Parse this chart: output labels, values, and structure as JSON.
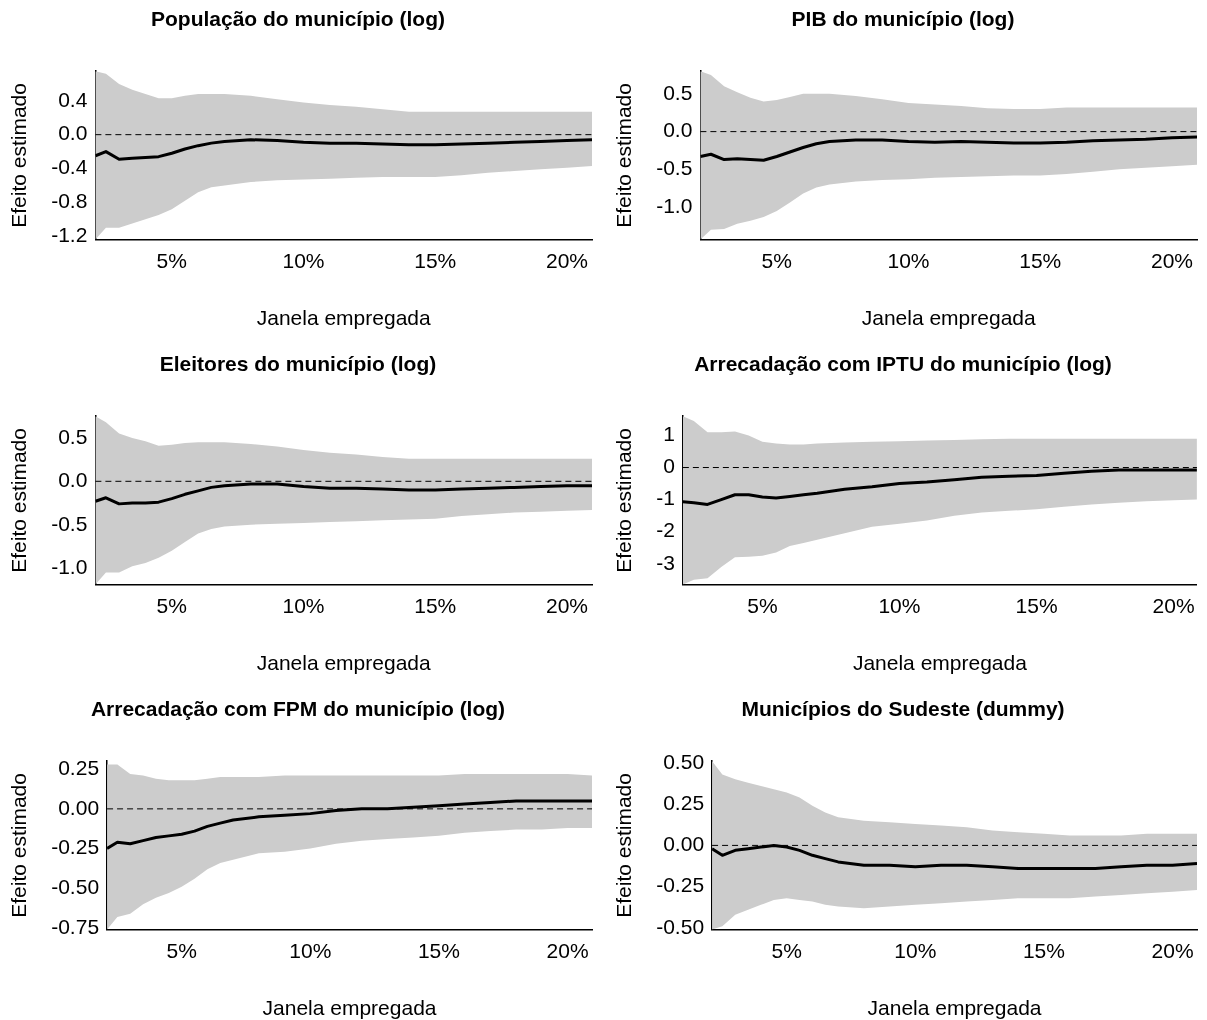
{
  "chart_data": [
    {
      "type": "line",
      "title": "População do município (log)",
      "xlabel": "Janela empregada",
      "ylabel": "Efeito estimado",
      "x": [
        2.1,
        2.5,
        3,
        3.5,
        4,
        4.5,
        5,
        5.5,
        6,
        6.5,
        7,
        8,
        9,
        10,
        11,
        12,
        13,
        14,
        15,
        16,
        17,
        18,
        19,
        20,
        20.95
      ],
      "series": [
        {
          "color": "#000000",
          "values": [
            -0.25,
            -0.2,
            -0.29,
            -0.28,
            -0.27,
            -0.26,
            -0.22,
            -0.17,
            -0.13,
            -0.1,
            -0.08,
            -0.06,
            -0.07,
            -0.09,
            -0.1,
            -0.1,
            -0.11,
            -0.12,
            -0.12,
            -0.11,
            -0.1,
            -0.09,
            -0.08,
            -0.07,
            -0.06
          ],
          "upper": [
            0.75,
            0.72,
            0.6,
            0.53,
            0.48,
            0.43,
            0.43,
            0.46,
            0.48,
            0.48,
            0.48,
            0.46,
            0.42,
            0.38,
            0.35,
            0.33,
            0.3,
            0.27,
            0.27,
            0.27,
            0.27,
            0.27,
            0.27,
            0.27,
            0.27
          ],
          "lower": [
            -1.24,
            -1.1,
            -1.1,
            -1.05,
            -1.0,
            -0.95,
            -0.88,
            -0.78,
            -0.68,
            -0.62,
            -0.6,
            -0.56,
            -0.54,
            -0.53,
            -0.52,
            -0.51,
            -0.5,
            -0.5,
            -0.5,
            -0.48,
            -0.45,
            -0.43,
            -0.41,
            -0.39,
            -0.37
          ]
        }
      ],
      "xlim": [
        2.1,
        20.95
      ],
      "xticks": [
        {
          "value": 5,
          "label": "5%"
        },
        {
          "value": 10,
          "label": "10%"
        },
        {
          "value": 15,
          "label": "15%"
        },
        {
          "value": 20,
          "label": "20%"
        }
      ],
      "ylim": [
        -1.24,
        0.75
      ],
      "yticks": [
        {
          "value": -1.2,
          "label": "-1.2"
        },
        {
          "value": -0.8,
          "label": "-0.8"
        },
        {
          "value": -0.4,
          "label": "-0.4"
        },
        {
          "value": 0,
          "label": "0.0"
        },
        {
          "value": 0.4,
          "label": "0.4"
        }
      ],
      "ref_lines": [
        {
          "axis": "y",
          "value": 0,
          "line_style": "dashed"
        }
      ],
      "grid": false,
      "legend": false
    },
    {
      "type": "line",
      "title": "PIB do município (log)",
      "xlabel": "Janela empregada",
      "ylabel": "Efeito estimado",
      "x": [
        2.1,
        2.5,
        3,
        3.5,
        4,
        4.5,
        5,
        5.5,
        6,
        6.5,
        7,
        8,
        9,
        10,
        11,
        12,
        13,
        14,
        15,
        16,
        17,
        18,
        19,
        20,
        20.95
      ],
      "series": [
        {
          "color": "#000000",
          "values": [
            -0.33,
            -0.3,
            -0.37,
            -0.36,
            -0.37,
            -0.38,
            -0.33,
            -0.27,
            -0.21,
            -0.16,
            -0.13,
            -0.11,
            -0.11,
            -0.13,
            -0.14,
            -0.13,
            -0.14,
            -0.15,
            -0.15,
            -0.14,
            -0.12,
            -0.11,
            -0.1,
            -0.08,
            -0.07
          ],
          "upper": [
            0.8,
            0.75,
            0.6,
            0.52,
            0.45,
            0.4,
            0.42,
            0.46,
            0.5,
            0.5,
            0.5,
            0.47,
            0.43,
            0.38,
            0.36,
            0.34,
            0.31,
            0.3,
            0.3,
            0.32,
            0.32,
            0.32,
            0.32,
            0.32,
            0.32
          ],
          "lower": [
            -1.43,
            -1.3,
            -1.29,
            -1.22,
            -1.18,
            -1.13,
            -1.05,
            -0.94,
            -0.82,
            -0.74,
            -0.7,
            -0.66,
            -0.64,
            -0.63,
            -0.61,
            -0.6,
            -0.59,
            -0.58,
            -0.58,
            -0.56,
            -0.53,
            -0.5,
            -0.48,
            -0.46,
            -0.44
          ]
        }
      ],
      "xlim": [
        2.1,
        20.95
      ],
      "xticks": [
        {
          "value": 5,
          "label": "5%"
        },
        {
          "value": 10,
          "label": "10%"
        },
        {
          "value": 15,
          "label": "15%"
        },
        {
          "value": 20,
          "label": "20%"
        }
      ],
      "ylim": [
        -1.43,
        0.8
      ],
      "yticks": [
        {
          "value": -1,
          "label": "-1.0"
        },
        {
          "value": -0.5,
          "label": "-0.5"
        },
        {
          "value": 0,
          "label": "0.0"
        },
        {
          "value": 0.5,
          "label": "0.5"
        }
      ],
      "ref_lines": [
        {
          "axis": "y",
          "value": 0,
          "line_style": "dashed"
        }
      ],
      "grid": false,
      "legend": false
    },
    {
      "type": "line",
      "title": "Eleitores do município (log)",
      "xlabel": "Janela empregada",
      "ylabel": "Efeito estimado",
      "x": [
        2.1,
        2.5,
        3,
        3.5,
        4,
        4.5,
        5,
        5.5,
        6,
        6.5,
        7,
        8,
        9,
        10,
        11,
        12,
        13,
        14,
        15,
        16,
        17,
        18,
        19,
        20,
        20.95
      ],
      "series": [
        {
          "color": "#000000",
          "values": [
            -0.23,
            -0.19,
            -0.26,
            -0.25,
            -0.25,
            -0.24,
            -0.2,
            -0.15,
            -0.11,
            -0.07,
            -0.05,
            -0.03,
            -0.03,
            -0.06,
            -0.08,
            -0.08,
            -0.09,
            -0.1,
            -0.1,
            -0.09,
            -0.08,
            -0.07,
            -0.06,
            -0.05,
            -0.05
          ],
          "upper": [
            0.75,
            0.68,
            0.55,
            0.5,
            0.46,
            0.41,
            0.42,
            0.44,
            0.45,
            0.45,
            0.45,
            0.43,
            0.4,
            0.36,
            0.33,
            0.31,
            0.28,
            0.26,
            0.26,
            0.26,
            0.26,
            0.26,
            0.26,
            0.26,
            0.26
          ],
          "lower": [
            -1.19,
            -1.05,
            -1.05,
            -0.98,
            -0.94,
            -0.88,
            -0.8,
            -0.7,
            -0.6,
            -0.55,
            -0.52,
            -0.5,
            -0.49,
            -0.48,
            -0.47,
            -0.46,
            -0.45,
            -0.44,
            -0.43,
            -0.4,
            -0.38,
            -0.36,
            -0.35,
            -0.34,
            -0.33
          ]
        }
      ],
      "xlim": [
        2.1,
        20.95
      ],
      "xticks": [
        {
          "value": 5,
          "label": "5%"
        },
        {
          "value": 10,
          "label": "10%"
        },
        {
          "value": 15,
          "label": "15%"
        },
        {
          "value": 20,
          "label": "20%"
        }
      ],
      "ylim": [
        -1.19,
        0.75
      ],
      "yticks": [
        {
          "value": -1,
          "label": "-1.0"
        },
        {
          "value": -0.5,
          "label": "-0.5"
        },
        {
          "value": 0,
          "label": "0.0"
        },
        {
          "value": 0.5,
          "label": "0.5"
        }
      ],
      "ref_lines": [
        {
          "axis": "y",
          "value": 0,
          "line_style": "dashed"
        }
      ],
      "grid": false,
      "legend": false
    },
    {
      "type": "line",
      "title": "Arrecadação com IPTU do município (log)",
      "xlabel": "Janela empregada",
      "ylabel": "Efeito estimado",
      "x": [
        2.1,
        2.5,
        3,
        3.5,
        4,
        4.5,
        5,
        5.5,
        6,
        6.5,
        7,
        8,
        9,
        10,
        11,
        12,
        13,
        14,
        15,
        16,
        17,
        18,
        19,
        20,
        20.85
      ],
      "series": [
        {
          "color": "#000000",
          "values": [
            -1.07,
            -1.1,
            -1.15,
            -1.0,
            -0.85,
            -0.85,
            -0.92,
            -0.95,
            -0.9,
            -0.85,
            -0.8,
            -0.68,
            -0.6,
            -0.5,
            -0.45,
            -0.38,
            -0.3,
            -0.27,
            -0.25,
            -0.18,
            -0.12,
            -0.08,
            -0.08,
            -0.08,
            -0.08
          ],
          "upper": [
            1.6,
            1.45,
            1.1,
            1.1,
            1.12,
            1.0,
            0.8,
            0.75,
            0.72,
            0.72,
            0.75,
            0.78,
            0.8,
            0.82,
            0.84,
            0.86,
            0.88,
            0.9,
            0.9,
            0.9,
            0.9,
            0.9,
            0.9,
            0.9,
            0.9
          ],
          "lower": [
            -3.65,
            -3.5,
            -3.45,
            -3.1,
            -2.8,
            -2.78,
            -2.75,
            -2.65,
            -2.45,
            -2.35,
            -2.25,
            -2.05,
            -1.85,
            -1.75,
            -1.65,
            -1.5,
            -1.4,
            -1.35,
            -1.3,
            -1.22,
            -1.15,
            -1.1,
            -1.05,
            -1.02,
            -1.0
          ]
        }
      ],
      "xlim": [
        2.1,
        20.85
      ],
      "xticks": [
        {
          "value": 5,
          "label": "5%"
        },
        {
          "value": 10,
          "label": "10%"
        },
        {
          "value": 15,
          "label": "15%"
        },
        {
          "value": 20,
          "label": "20%"
        }
      ],
      "ylim": [
        -3.65,
        1.6
      ],
      "yticks": [
        -3,
        -2,
        -1,
        0,
        1
      ],
      "ref_lines": [
        {
          "axis": "y",
          "value": 0,
          "line_style": "dashed"
        }
      ],
      "grid": false,
      "legend": false
    },
    {
      "type": "line",
      "title": "Arrecadação com FPM do município (log)",
      "xlabel": "Janela empregada",
      "ylabel": "Efeito estimado",
      "x": [
        2.1,
        2.5,
        3,
        3.5,
        4,
        4.5,
        5,
        5.5,
        6,
        6.5,
        7,
        8,
        9,
        10,
        11,
        12,
        13,
        14,
        15,
        16,
        17,
        18,
        19,
        20,
        20.95
      ],
      "series": [
        {
          "color": "#000000",
          "values": [
            -0.25,
            -0.21,
            -0.22,
            -0.2,
            -0.18,
            -0.17,
            -0.16,
            -0.14,
            -0.11,
            -0.09,
            -0.07,
            -0.05,
            -0.04,
            -0.03,
            -0.01,
            0.0,
            0.0,
            0.01,
            0.02,
            0.03,
            0.04,
            0.05,
            0.05,
            0.05,
            0.05
          ],
          "upper": [
            0.28,
            0.28,
            0.22,
            0.21,
            0.19,
            0.18,
            0.18,
            0.18,
            0.19,
            0.2,
            0.2,
            0.2,
            0.21,
            0.21,
            0.21,
            0.21,
            0.21,
            0.21,
            0.21,
            0.22,
            0.22,
            0.22,
            0.22,
            0.22,
            0.21
          ],
          "lower": [
            -0.76,
            -0.68,
            -0.66,
            -0.6,
            -0.56,
            -0.53,
            -0.49,
            -0.44,
            -0.38,
            -0.34,
            -0.32,
            -0.28,
            -0.27,
            -0.25,
            -0.22,
            -0.2,
            -0.19,
            -0.18,
            -0.17,
            -0.15,
            -0.14,
            -0.13,
            -0.13,
            -0.12,
            -0.12
          ]
        }
      ],
      "xlim": [
        2.1,
        20.95
      ],
      "xticks": [
        {
          "value": 5,
          "label": "5%"
        },
        {
          "value": 10,
          "label": "10%"
        },
        {
          "value": 15,
          "label": "15%"
        },
        {
          "value": 20,
          "label": "20%"
        }
      ],
      "ylim": [
        -0.76,
        0.3
      ],
      "yticks": [
        {
          "value": -0.75,
          "label": "-0.75"
        },
        {
          "value": -0.5,
          "label": "-0.50"
        },
        {
          "value": -0.25,
          "label": "-0.25"
        },
        {
          "value": 0,
          "label": "0.00"
        },
        {
          "value": 0.25,
          "label": "0.25"
        }
      ],
      "ref_lines": [
        {
          "axis": "y",
          "value": 0,
          "line_style": "dashed"
        }
      ],
      "grid": false,
      "legend": false
    },
    {
      "type": "line",
      "title": "Municípios do Sudeste (dummy)",
      "xlabel": "Janela empregada",
      "ylabel": "Efeito estimado",
      "x": [
        2.1,
        2.5,
        3,
        3.5,
        4,
        4.5,
        5,
        5.5,
        6,
        6.5,
        7,
        8,
        9,
        10,
        11,
        12,
        13,
        14,
        15,
        16,
        17,
        18,
        19,
        20,
        20.95
      ],
      "series": [
        {
          "color": "#000000",
          "values": [
            -0.02,
            -0.06,
            -0.03,
            -0.02,
            -0.01,
            0.0,
            -0.01,
            -0.03,
            -0.06,
            -0.08,
            -0.1,
            -0.12,
            -0.12,
            -0.13,
            -0.12,
            -0.12,
            -0.13,
            -0.14,
            -0.14,
            -0.14,
            -0.14,
            -0.13,
            -0.12,
            -0.12,
            -0.11
          ],
          "upper": [
            0.51,
            0.43,
            0.4,
            0.38,
            0.36,
            0.34,
            0.32,
            0.29,
            0.24,
            0.2,
            0.17,
            0.15,
            0.14,
            0.13,
            0.12,
            0.11,
            0.09,
            0.08,
            0.07,
            0.06,
            0.06,
            0.06,
            0.07,
            0.07,
            0.07
          ],
          "lower": [
            -0.51,
            -0.49,
            -0.42,
            -0.39,
            -0.36,
            -0.33,
            -0.32,
            -0.33,
            -0.34,
            -0.36,
            -0.37,
            -0.38,
            -0.37,
            -0.36,
            -0.35,
            -0.34,
            -0.33,
            -0.32,
            -0.32,
            -0.32,
            -0.31,
            -0.3,
            -0.29,
            -0.28,
            -0.27
          ]
        }
      ],
      "xlim": [
        2.1,
        20.95
      ],
      "xticks": [
        {
          "value": 5,
          "label": "5%"
        },
        {
          "value": 10,
          "label": "10%"
        },
        {
          "value": 15,
          "label": "15%"
        },
        {
          "value": 20,
          "label": "20%"
        }
      ],
      "ylim": [
        -0.51,
        0.51
      ],
      "yticks": [
        {
          "value": -0.5,
          "label": "-0.50"
        },
        {
          "value": -0.25,
          "label": "-0.25"
        },
        {
          "value": 0,
          "label": "0.00"
        },
        {
          "value": 0.25,
          "label": "0.25"
        },
        {
          "value": 0.5,
          "label": "0.50"
        }
      ],
      "ref_lines": [
        {
          "axis": "y",
          "value": 0,
          "line_style": "dashed"
        }
      ],
      "grid": false,
      "legend": false
    }
  ]
}
